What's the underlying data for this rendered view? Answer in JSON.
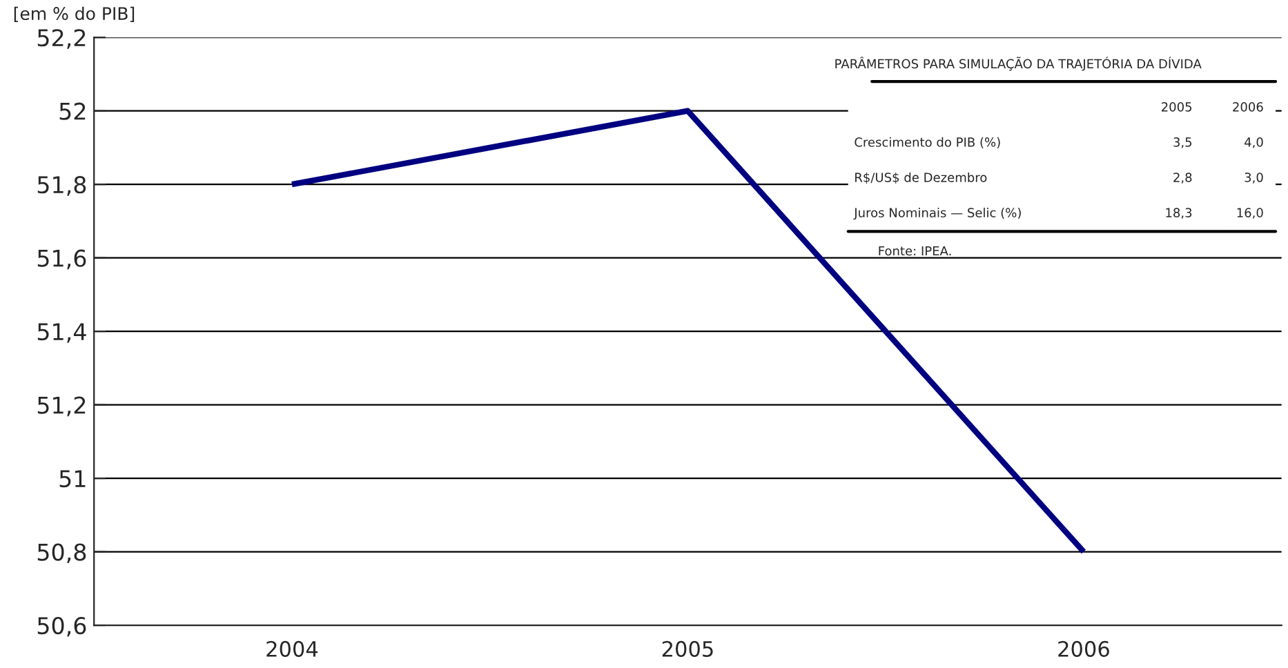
{
  "chart_data": {
    "type": "line",
    "ylabel": "[em % do PIB]",
    "categories": [
      "2004",
      "2005",
      "2006"
    ],
    "series": [
      {
        "color": "#000080",
        "values": [
          51.8,
          52.0,
          50.8
        ]
      }
    ],
    "ylim": [
      50.6,
      52.2
    ],
    "yticks": [
      {
        "value": 50.6,
        "label": "50,6"
      },
      {
        "value": 50.8,
        "label": "50,8"
      },
      51,
      {
        "value": 51.2,
        "label": "51,2"
      },
      {
        "value": 51.4,
        "label": "51,4"
      },
      {
        "value": 51.6,
        "label": "51,6"
      },
      {
        "value": 51.8,
        "label": "51,8"
      },
      52,
      {
        "value": 52.2,
        "label": "52,2"
      }
    ],
    "grid": "y",
    "legend": false,
    "line_style": "solid",
    "annotations": [
      "PARÂMETROS PARA SIMULAÇÃO DA TRAJETÓRIA DA DÍVIDA",
      "2005",
      "2006",
      "Crescimento do PIB (%)",
      "3,5",
      "4,0",
      "R$/US$ de Dezembro",
      "2,8",
      "3,0",
      "Juros Nominais — Selic (%)",
      "18,3",
      "16,0",
      "Fonte: IPEA."
    ]
  }
}
